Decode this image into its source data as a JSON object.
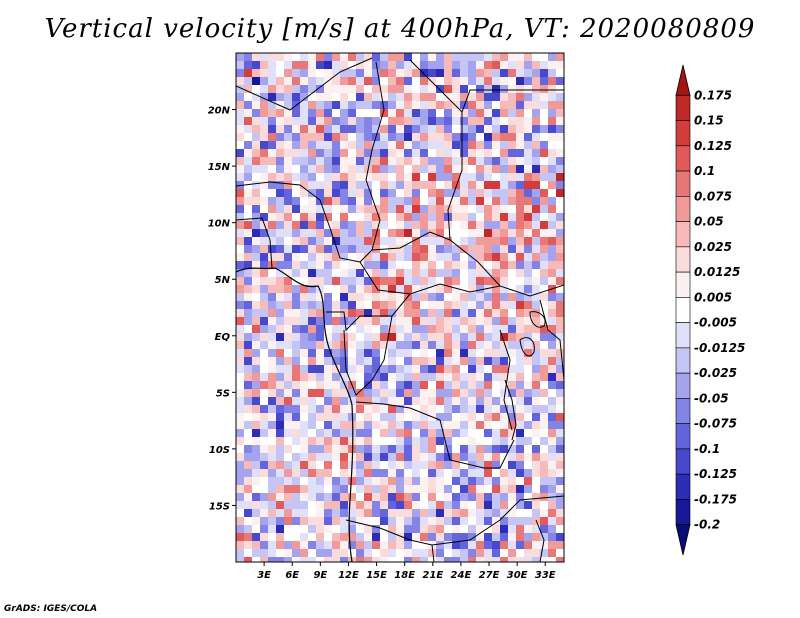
{
  "title": "Vertical velocity [m/s] at 400hPa, VT: 2020080809",
  "footer": "GrADS: IGES/COLA",
  "chart_data": {
    "type": "heatmap",
    "title": "Vertical velocity [m/s] at 400hPa, VT: 2020080809",
    "variable": "Vertical velocity",
    "units": "m/s",
    "level": "400hPa",
    "valid_time": "2020080809",
    "lon_range": [
      0,
      35
    ],
    "lat_range": [
      -20,
      25
    ],
    "x_tick_labels": [
      "3E",
      "6E",
      "9E",
      "12E",
      "15E",
      "18E",
      "21E",
      "24E",
      "27E",
      "30E",
      "33E"
    ],
    "x_tick_values": [
      3,
      6,
      9,
      12,
      15,
      18,
      21,
      24,
      27,
      30,
      33
    ],
    "y_tick_labels": [
      "20N",
      "15N",
      "10N",
      "5N",
      "EQ",
      "5S",
      "10S",
      "15S"
    ],
    "y_tick_values": [
      20,
      15,
      10,
      5,
      0,
      -5,
      -10,
      -15
    ],
    "colorbar_levels": [
      "0.175",
      "0.15",
      "0.125",
      "0.1",
      "0.075",
      "0.05",
      "0.025",
      "0.0125",
      "0.005",
      "-0.005",
      "-0.0125",
      "-0.025",
      "-0.05",
      "-0.075",
      "-0.1",
      "-0.125",
      "-0.175",
      "-0.2"
    ],
    "colorbar_colors": [
      "#a51515",
      "#be2828",
      "#d23c3c",
      "#e05a5a",
      "#e87878",
      "#f09a9a",
      "#f6baba",
      "#fadcdc",
      "#fdf0f0",
      "#ffffff",
      "#e0e0fb",
      "#c4c4f5",
      "#a4a4ee",
      "#8484e6",
      "#6464dc",
      "#4848cc",
      "#2c2cb4",
      "#181896",
      "#0c0c78"
    ]
  }
}
